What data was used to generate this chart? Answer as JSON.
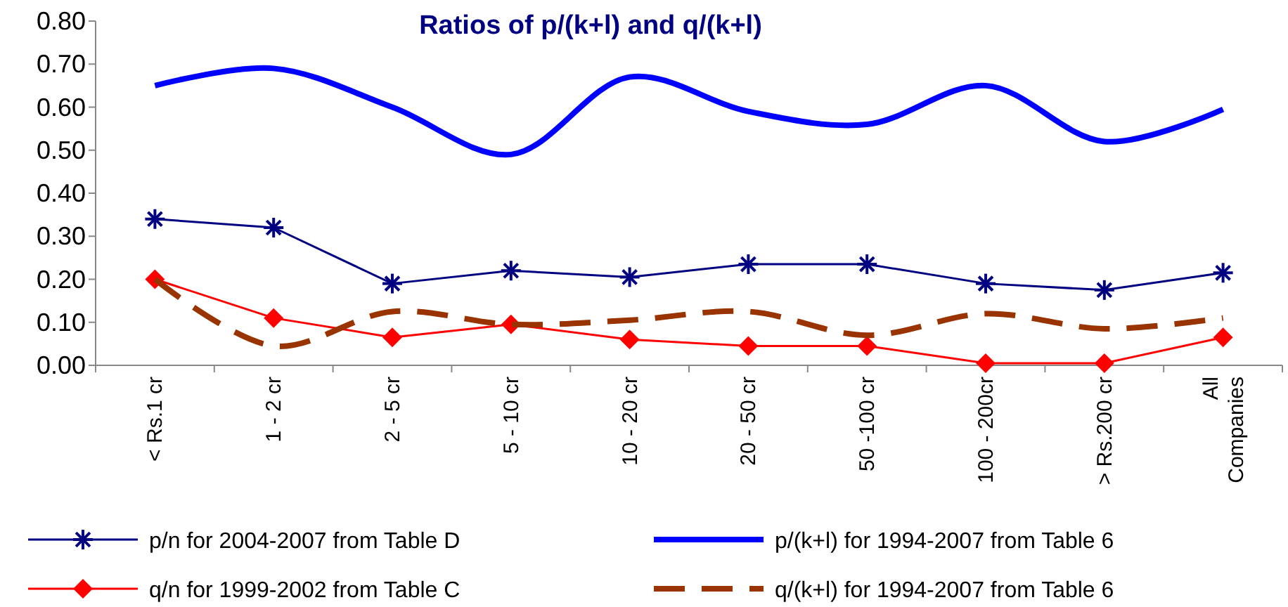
{
  "chart_data": {
    "type": "line",
    "title": "Ratios of p/(k+l) and q/(k+l)",
    "categories": [
      "< Rs.1 cr",
      "1 - 2 cr",
      "2 - 5 cr",
      "5 - 10 cr",
      "10 - 20 cr",
      "20 - 50 cr",
      "50 -100 cr",
      "100 - 200cr",
      "> Rs.200 cr",
      "All Companies"
    ],
    "series": [
      {
        "name": "p/n for 2004-2007 from Table D",
        "color": "#000080",
        "marker": "cross",
        "line_style": "solid",
        "values": [
          0.34,
          0.32,
          0.19,
          0.22,
          0.205,
          0.235,
          0.235,
          0.19,
          0.175,
          0.215
        ]
      },
      {
        "name": "p/(k+l) for 1994-2007 from Table 6",
        "color": "#0000ff",
        "marker": "none",
        "line_style": "solid",
        "values": [
          0.65,
          0.69,
          0.6,
          0.49,
          0.67,
          0.59,
          0.56,
          0.65,
          0.52,
          0.595
        ]
      },
      {
        "name": "q/n for 1999-2002 from Table C",
        "color": "#ff0000",
        "marker": "diamond",
        "line_style": "solid",
        "values": [
          0.2,
          0.11,
          0.065,
          0.095,
          0.06,
          0.045,
          0.045,
          0.005,
          0.005,
          0.065
        ]
      },
      {
        "name": "q/(k+l) for 1994-2007 from Table 6",
        "color": "#993300",
        "marker": "none",
        "line_style": "dashed",
        "values": [
          0.2,
          0.045,
          0.125,
          0.095,
          0.105,
          0.125,
          0.07,
          0.12,
          0.085,
          0.11
        ]
      }
    ],
    "ylim": [
      0,
      0.8
    ],
    "yticks": [
      {
        "value": 0,
        "label": "0.00"
      },
      {
        "value": 0.1,
        "label": "0.10"
      },
      {
        "value": 0.2,
        "label": "0.20"
      },
      {
        "value": 0.3,
        "label": "0.30"
      },
      {
        "value": 0.4,
        "label": "0.40"
      },
      {
        "value": 0.5,
        "label": "0.50"
      },
      {
        "value": 0.6,
        "label": "0.60"
      },
      {
        "value": 0.7,
        "label": "0.70"
      },
      {
        "value": 0.8,
        "label": "0.80"
      }
    ],
    "grid": false,
    "legend": "bottom"
  }
}
